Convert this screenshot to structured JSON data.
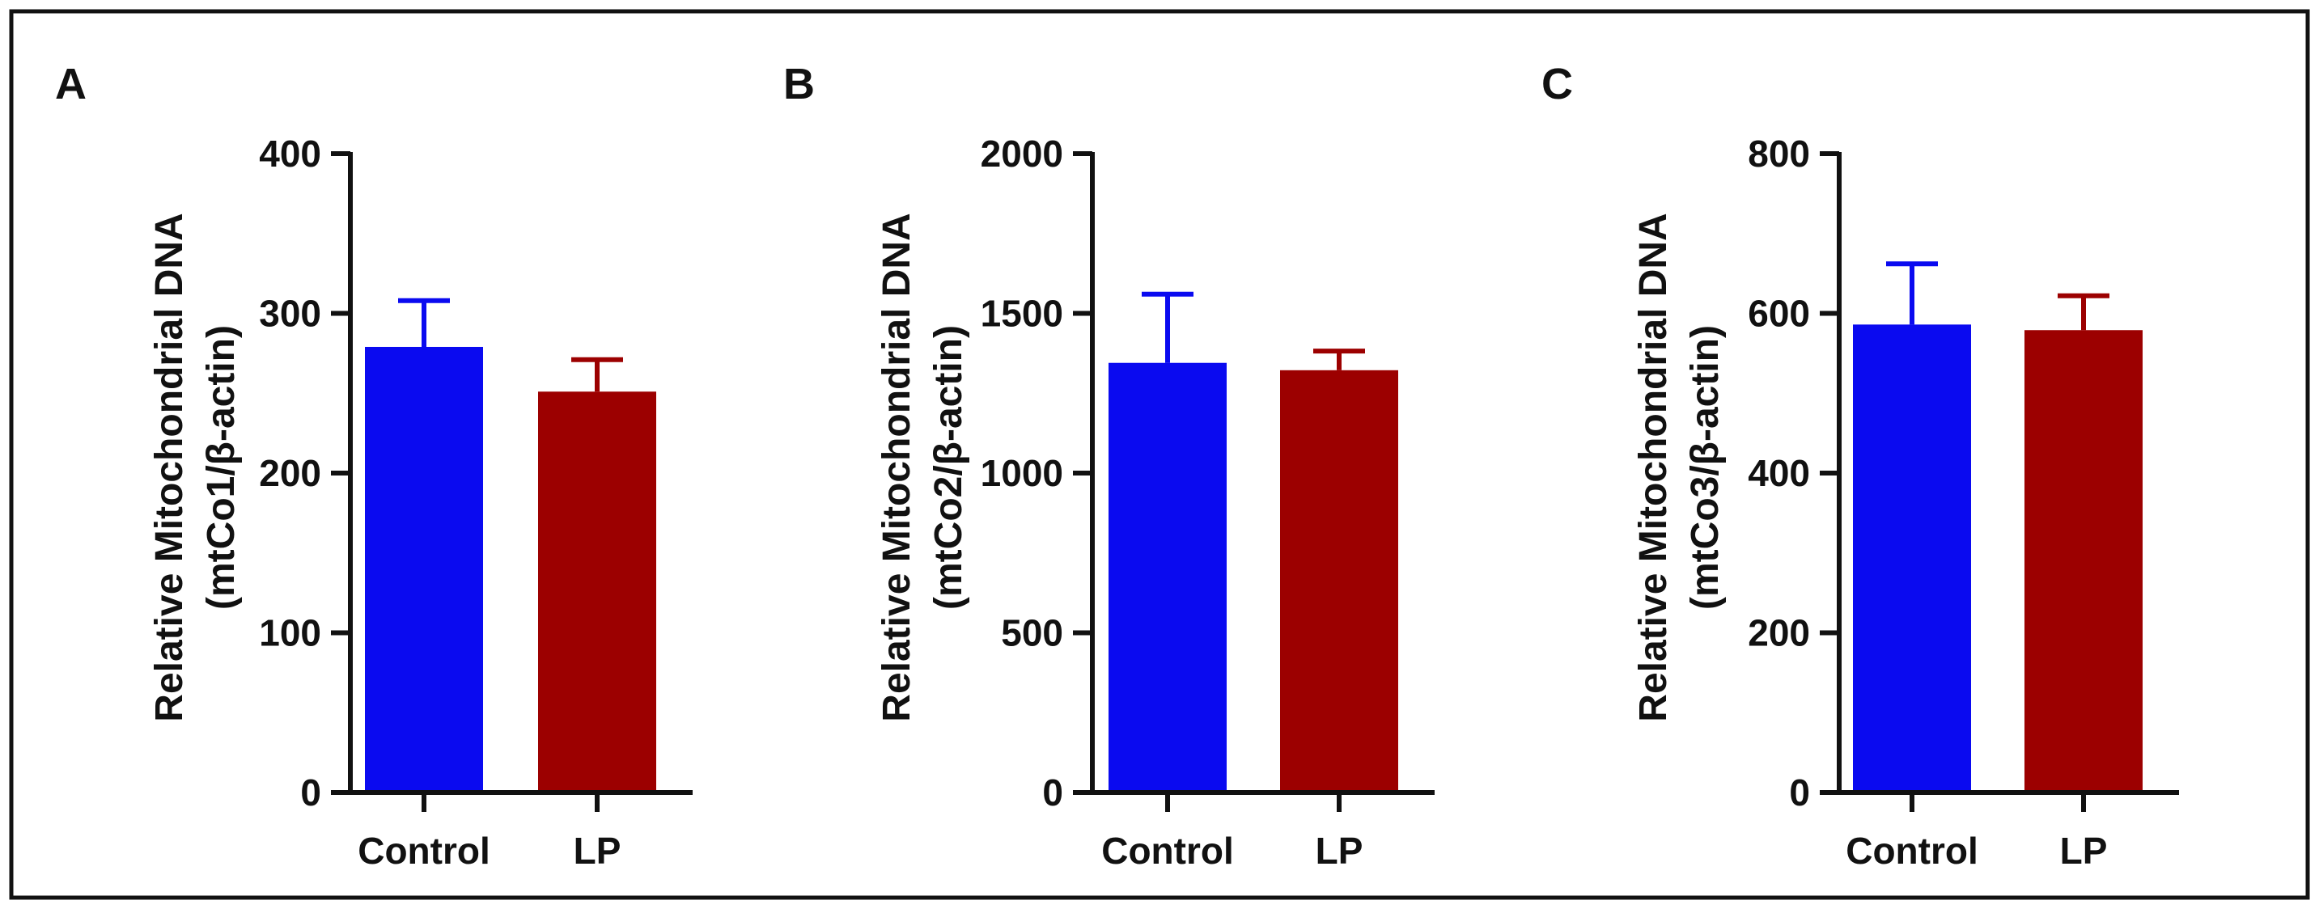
{
  "colors": {
    "control": "#0a0af0",
    "lp": "#9c0000",
    "axis": "#111111",
    "frame": "#111111"
  },
  "chart_data": [
    {
      "type": "bar",
      "panel": "A",
      "categories": [
        "Control",
        "LP"
      ],
      "values": [
        279,
        251
      ],
      "errors": [
        29,
        20
      ],
      "ylim": [
        0,
        400
      ],
      "yticks": [
        "0",
        "100",
        "200",
        "300",
        "400"
      ],
      "ytick_values": [
        0,
        100,
        200,
        300,
        400
      ],
      "ylabel": "Relative Mitochondrial DNA",
      "ylabel2": "(mtCo1/β-actin)",
      "xlabel": ""
    },
    {
      "type": "bar",
      "panel": "B",
      "categories": [
        "Control",
        "LP"
      ],
      "values": [
        1345,
        1322
      ],
      "errors": [
        215,
        60
      ],
      "ylim": [
        0,
        2000
      ],
      "yticks": [
        "0",
        "500",
        "1000",
        "1500",
        "2000"
      ],
      "ytick_values": [
        0,
        500,
        1000,
        1500,
        2000
      ],
      "ylabel": "Relative Mitochondrial DNA",
      "ylabel2": "(mtCo2/β-actin)",
      "xlabel": ""
    },
    {
      "type": "bar",
      "panel": "C",
      "categories": [
        "Control",
        "LP"
      ],
      "values": [
        586,
        579
      ],
      "errors": [
        76,
        43
      ],
      "ylim": [
        0,
        800
      ],
      "yticks": [
        "0",
        "200",
        "400",
        "600",
        "800"
      ],
      "ytick_values": [
        0,
        200,
        400,
        600,
        800
      ],
      "ylabel": "Relative Mitochondrial DNA",
      "ylabel2": "(mtCo3/β-actin)",
      "xlabel": ""
    }
  ]
}
